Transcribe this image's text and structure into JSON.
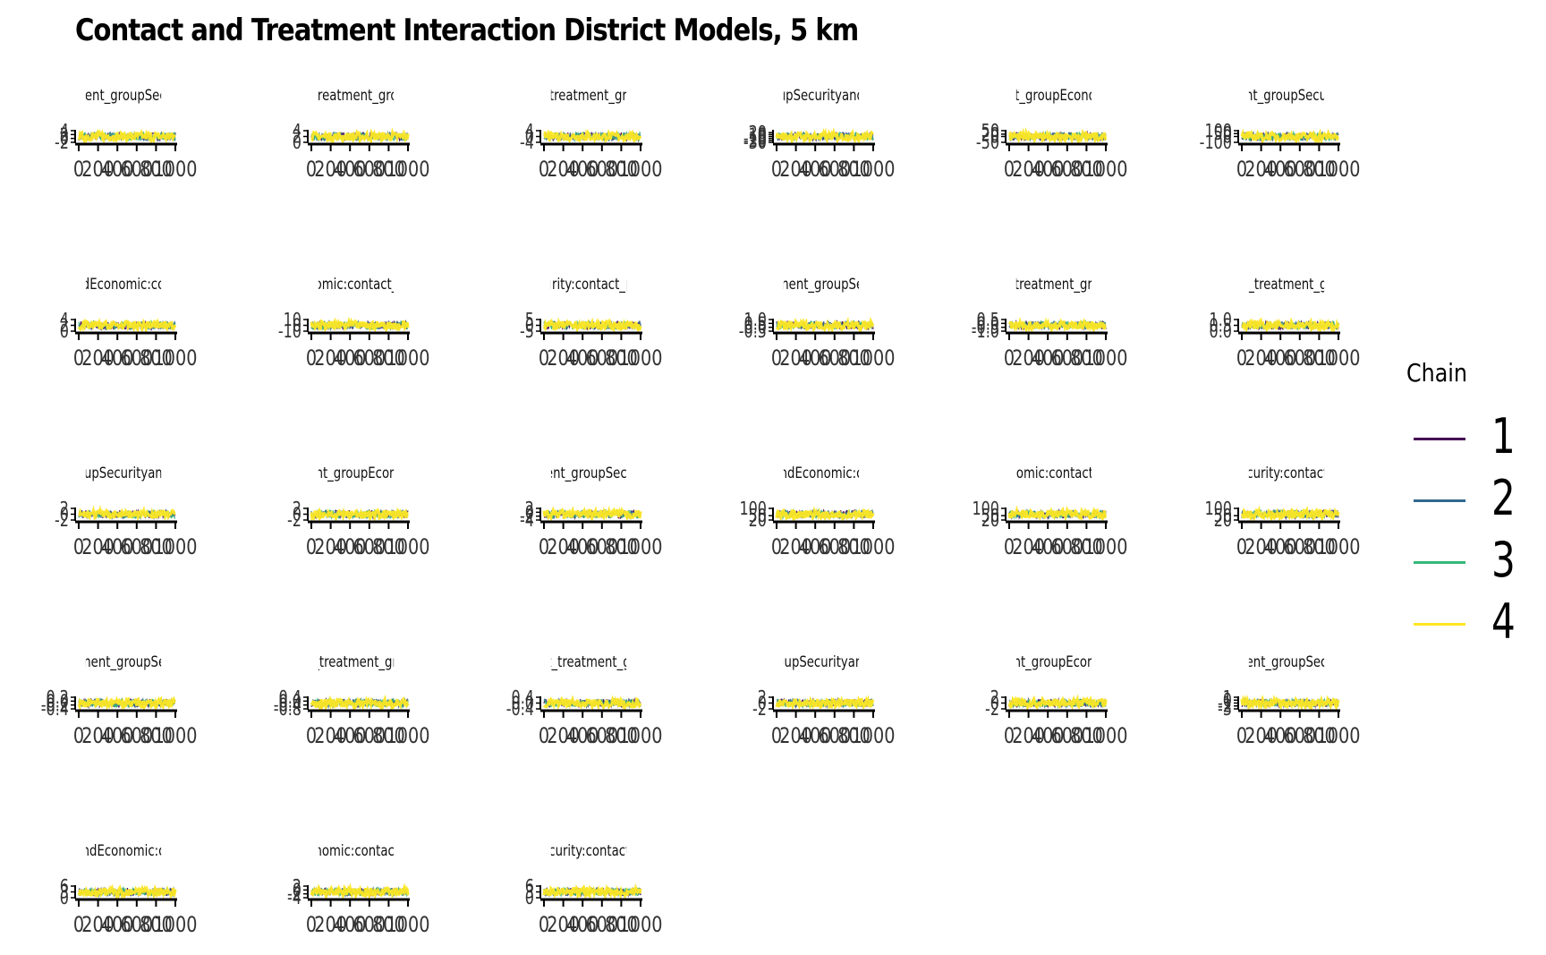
{
  "chart_data": {
    "type": "line",
    "title": "Contact and Treatment Interaction District Models, 5 km",
    "legend": {
      "title": "Chain",
      "placement": "right",
      "items": [
        {
          "label": "1",
          "color": "#440154"
        },
        {
          "label": "2",
          "color": "#31688e"
        },
        {
          "label": "3",
          "color": "#35b779"
        },
        {
          "label": "4",
          "color": "#fde725"
        }
      ]
    },
    "x_ticks": [
      "0",
      "200",
      "400",
      "600",
      "800",
      "1000"
    ],
    "panels": [
      {
        "label": "ment_groupSecu",
        "ylim": [
          -2,
          4
        ],
        "y_ticks": [
          "-2",
          "0",
          "2",
          "4"
        ]
      },
      {
        "label": "_treatment_grou",
        "ylim": [
          0,
          4
        ],
        "y_ticks": [
          "0",
          "2",
          "4"
        ]
      },
      {
        "label": "_treatment_gro",
        "ylim": [
          -4,
          4
        ],
        "y_ticks": [
          "-4",
          "0",
          "4"
        ]
      },
      {
        "label": "oupSecurityandE",
        "ylim": [
          -30,
          30
        ],
        "y_ticks": [
          "-30",
          "-20",
          "-10",
          "0",
          "10",
          "20"
        ]
      },
      {
        "label": "nt_groupEconor",
        "ylim": [
          -50,
          50
        ],
        "y_ticks": [
          "-50",
          "0",
          "20",
          "50"
        ]
      },
      {
        "label": "ent_groupSecuri",
        "ylim": [
          -100,
          100
        ],
        "y_ticks": [
          "-100",
          "0",
          "50",
          "100"
        ]
      },
      {
        "label": "ndEconomic:con",
        "ylim": [
          0,
          4
        ],
        "y_ticks": [
          "0",
          "2",
          "4"
        ]
      },
      {
        "label": "nomic:contact_p",
        "ylim": [
          -10,
          10
        ],
        "y_ticks": [
          "-10",
          "0",
          "10"
        ]
      },
      {
        "label": "urity:contact_p",
        "ylim": [
          -5,
          5
        ],
        "y_ticks": [
          "-5",
          "0",
          "5"
        ]
      },
      {
        "label": "tment_groupSec",
        "ylim": [
          -0.5,
          1.0
        ],
        "y_ticks": [
          "-0.5",
          "0.0",
          "0.5",
          "1.0"
        ]
      },
      {
        "label": "_treatment_gro",
        "ylim": [
          -1.0,
          0.5
        ],
        "y_ticks": [
          "-1.0",
          "-0.5",
          "0.0",
          "0.5"
        ]
      },
      {
        "label": "e_treatment_gr",
        "ylim": [
          0.0,
          1.0
        ],
        "y_ticks": [
          "0.0",
          "0.5",
          "1.0"
        ]
      },
      {
        "label": "oupSecurityand",
        "ylim": [
          -2,
          2
        ],
        "y_ticks": [
          "-2",
          "0",
          "2"
        ]
      },
      {
        "label": "ent_groupEcono",
        "ylim": [
          -2,
          2
        ],
        "y_ticks": [
          "-2",
          "0",
          "2"
        ]
      },
      {
        "label": "nent_groupSecur",
        "ylim": [
          -4,
          2
        ],
        "y_ticks": [
          "-4",
          "-2",
          "0",
          "2"
        ]
      },
      {
        "label": "andEconomic:co",
        "ylim": [
          20,
          100
        ],
        "y_ticks": [
          "20",
          "50",
          "100"
        ]
      },
      {
        "label": "nomic:contact_",
        "ylim": [
          20,
          100
        ],
        "y_ticks": [
          "20",
          "50",
          "100"
        ]
      },
      {
        "label": "ecurity:contact_",
        "ylim": [
          20,
          100
        ],
        "y_ticks": [
          "20",
          "50",
          "100"
        ]
      },
      {
        "label": "tment_groupSec",
        "ylim": [
          -0.4,
          0.2
        ],
        "y_ticks": [
          "-0.4",
          "-0.2",
          "0.0",
          "0.2"
        ]
      },
      {
        "label": "t_treatment_grc",
        "ylim": [
          -0.8,
          0.4
        ],
        "y_ticks": [
          "-0.8",
          "-0.4",
          "0.0",
          "0.4"
        ]
      },
      {
        "label": "rt_treatment_gr",
        "ylim": [
          -0.4,
          0.4
        ],
        "y_ticks": [
          "-0.4",
          "0.0",
          "0.4"
        ]
      },
      {
        "label": "roupSecurityand",
        "ylim": [
          -2,
          2
        ],
        "y_ticks": [
          "-2",
          "0",
          "2"
        ]
      },
      {
        "label": "ent_groupEcono",
        "ylim": [
          -2,
          2
        ],
        "y_ticks": [
          "-2",
          "0",
          "2"
        ]
      },
      {
        "label": "nent_groupSecu",
        "ylim": [
          -3,
          1
        ],
        "y_ticks": [
          "-3",
          "-2",
          "-1",
          "0",
          "1"
        ]
      },
      {
        "label": "andEconomic:co",
        "ylim": [
          0,
          6
        ],
        "y_ticks": [
          "0",
          "3",
          "6"
        ]
      },
      {
        "label": "onomic:contact_",
        "ylim": [
          -4,
          2
        ],
        "y_ticks": [
          "-4",
          "-2",
          "0",
          "2"
        ]
      },
      {
        "label": "ecurity:contact_",
        "ylim": [
          0,
          6
        ],
        "y_ticks": [
          "0",
          "3",
          "6"
        ]
      }
    ]
  }
}
